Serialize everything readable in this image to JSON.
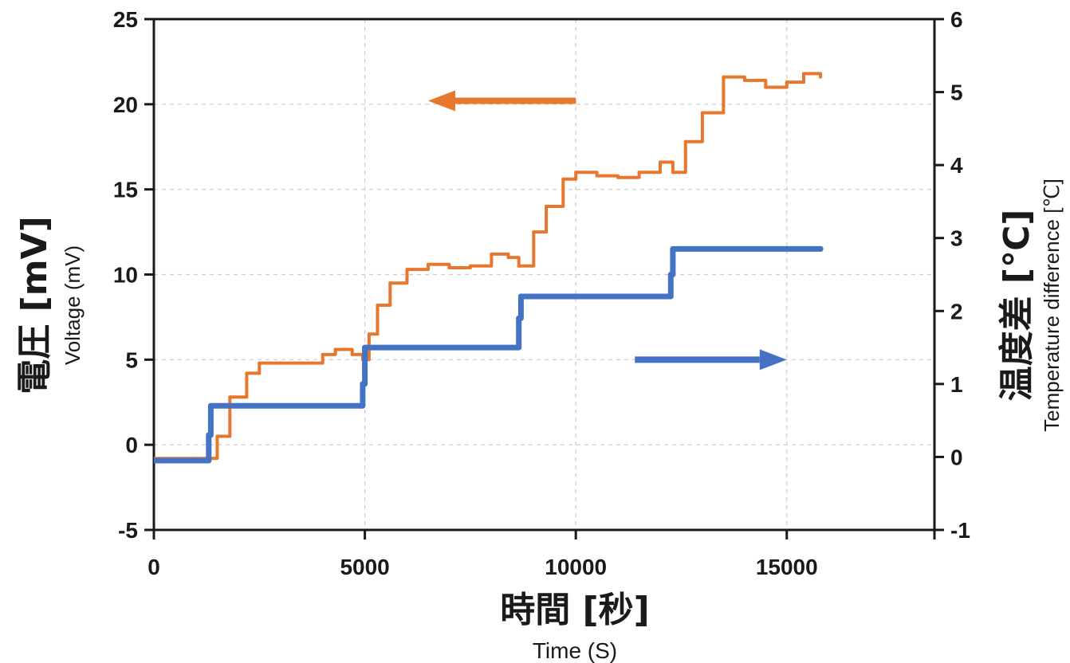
{
  "colors": {
    "voltage": "#E8772E",
    "temperature": "#4472C4",
    "axis": "#1a1a1a",
    "grid": "#cccccc"
  },
  "chart_data": {
    "type": "line",
    "title": "",
    "x": {
      "label_jp": "時間 [秒]",
      "label_en": "Time (S)",
      "lim": [
        0,
        18500
      ],
      "ticks": [
        0,
        5000,
        10000,
        15000
      ],
      "tick_labels": [
        "0",
        "5000",
        "10000",
        "15000"
      ]
    },
    "y_left": {
      "label_jp": "電圧 [mV]",
      "label_en": "Voltage (mV)",
      "lim": [
        -5,
        25
      ],
      "ticks": [
        -5,
        0,
        5,
        10,
        15,
        20,
        25
      ],
      "tick_labels": [
        "-5",
        "0",
        "5",
        "10",
        "15",
        "20",
        "25"
      ]
    },
    "y_right": {
      "label_jp": "温度差 [℃]",
      "label_en": "Temperature difference [℃]",
      "lim": [
        -1,
        6
      ],
      "ticks": [
        -1,
        0,
        1,
        2,
        3,
        4,
        5,
        6
      ],
      "tick_labels": [
        "-1",
        "0",
        "1",
        "2",
        "3",
        "4",
        "5",
        "6"
      ]
    },
    "grid": true,
    "series": [
      {
        "axis": "left",
        "color": "#E8772E",
        "x": [
          0,
          1000,
          1300,
          1500,
          1800,
          2200,
          2500,
          3000,
          3500,
          4000,
          4300,
          4700,
          4950,
          5100,
          5300,
          5600,
          6000,
          6500,
          7000,
          7500,
          8000,
          8400,
          8650,
          9000,
          9300,
          9700,
          10000,
          10500,
          11000,
          11500,
          12000,
          12300,
          12600,
          13000,
          13500,
          14000,
          14500,
          15000,
          15400,
          15800
        ],
        "y": [
          -0.8,
          -0.8,
          -0.8,
          0.5,
          2.8,
          4.2,
          4.8,
          4.8,
          4.8,
          5.3,
          5.6,
          5.3,
          5.0,
          6.5,
          8.2,
          9.5,
          10.3,
          10.6,
          10.4,
          10.5,
          11.2,
          11.0,
          10.5,
          12.5,
          14.0,
          15.6,
          16.0,
          15.8,
          15.7,
          16.0,
          16.6,
          16.0,
          17.8,
          19.5,
          21.6,
          21.4,
          21.0,
          21.3,
          21.8,
          21.6
        ]
      },
      {
        "axis": "right",
        "color": "#4472C4",
        "x": [
          0,
          1250,
          1300,
          1350,
          4900,
          4950,
          5000,
          8600,
          8650,
          8700,
          12200,
          12250,
          12300,
          15800
        ],
        "y": [
          -0.05,
          -0.05,
          0.3,
          0.7,
          0.7,
          1.0,
          1.5,
          1.5,
          1.9,
          2.2,
          2.2,
          2.5,
          2.85,
          2.85
        ]
      }
    ],
    "annotations": [
      {
        "type": "arrow",
        "direction": "left",
        "color": "#E8772E",
        "from": [
          10000,
          20.2
        ],
        "to": [
          6500,
          20.2
        ],
        "axis": "left"
      },
      {
        "type": "arrow",
        "direction": "right",
        "color": "#4472C4",
        "from": [
          11400,
          5.0
        ],
        "to": [
          15000,
          5.0
        ],
        "axis": "left"
      }
    ]
  }
}
